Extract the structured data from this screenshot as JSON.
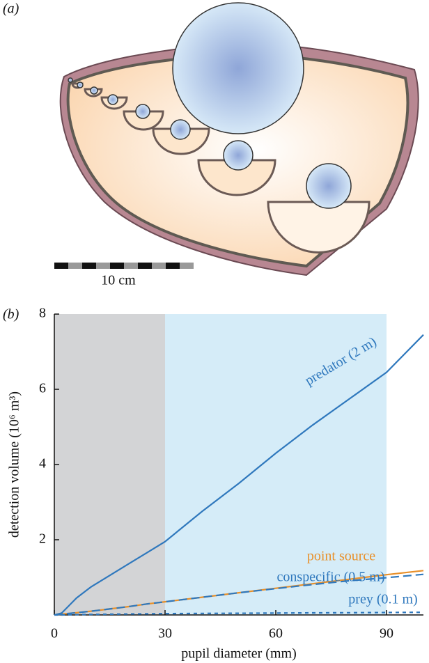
{
  "panel_a": {
    "label": "(a)",
    "scale_bar": "10 cm"
  },
  "chart_data": {
    "type": "line",
    "panel_label": "(b)",
    "xlabel": "pupil diameter (mm)",
    "ylabel": "detection volume (10⁶ m³)",
    "xlim": [
      0,
      100
    ],
    "ylim": [
      0,
      8
    ],
    "xticks": [
      0,
      30,
      60,
      90
    ],
    "yticks": [
      2,
      4,
      6,
      8
    ],
    "shaded_regions": [
      {
        "xlim": [
          0,
          30
        ],
        "color": "#d3d4d6"
      },
      {
        "xlim": [
          30,
          90
        ],
        "color": "#d5ecf8"
      }
    ],
    "x": [
      0,
      2,
      4,
      6,
      10,
      15,
      20,
      25,
      30,
      40,
      50,
      60,
      70,
      80,
      90,
      100
    ],
    "series": [
      {
        "name": "predator (2 m)",
        "color": "#2f78bd",
        "dash": "solid",
        "values": [
          0,
          0.05,
          0.25,
          0.45,
          0.75,
          1.05,
          1.35,
          1.65,
          1.95,
          2.75,
          3.5,
          4.3,
          5.05,
          5.75,
          6.45,
          7.45
        ]
      },
      {
        "name": "point source",
        "color": "#e8902a",
        "dash": "solid",
        "values": [
          0,
          0.02,
          0.04,
          0.06,
          0.1,
          0.16,
          0.22,
          0.29,
          0.35,
          0.47,
          0.59,
          0.71,
          0.83,
          0.95,
          1.07,
          1.18
        ]
      },
      {
        "name": "conspecific (0.5 m)",
        "color": "#2f78bd",
        "dash": "long",
        "values": [
          0,
          0.02,
          0.04,
          0.06,
          0.1,
          0.16,
          0.22,
          0.29,
          0.35,
          0.47,
          0.59,
          0.7,
          0.81,
          0.91,
          0.99,
          1.08
        ]
      },
      {
        "name": "prey (0.1 m)",
        "color": "#2f78bd",
        "dash": "short",
        "values": [
          0,
          0,
          0.005,
          0.01,
          0.015,
          0.02,
          0.025,
          0.03,
          0.035,
          0.04,
          0.045,
          0.05,
          0.055,
          0.06,
          0.065,
          0.07
        ]
      }
    ]
  }
}
